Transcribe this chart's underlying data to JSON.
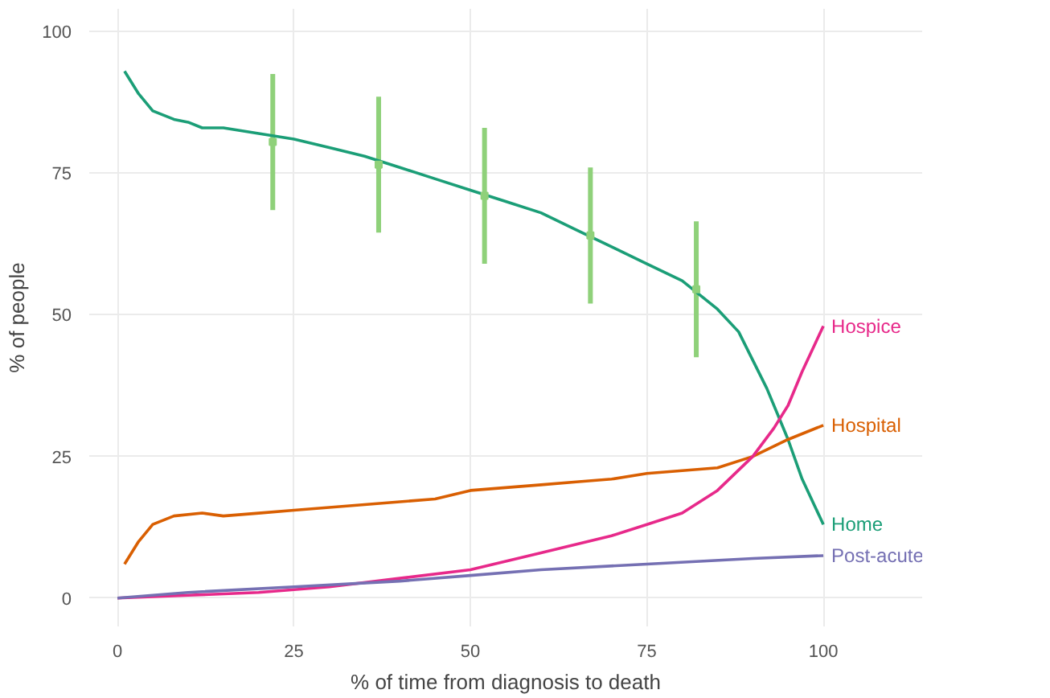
{
  "chart_data": {
    "type": "line",
    "xlabel": "% of time from diagnosis to death",
    "ylabel": "% of people",
    "xlim": [
      -4,
      114
    ],
    "ylim": [
      -5,
      104
    ],
    "xticks": [
      0,
      25,
      50,
      75,
      100
    ],
    "yticks": [
      0,
      25,
      50,
      75,
      100
    ],
    "grid": true,
    "series": [
      {
        "name": "Home",
        "color": "#1b9e77",
        "x": [
          1,
          3,
          5,
          8,
          10,
          12,
          15,
          20,
          25,
          30,
          35,
          40,
          45,
          50,
          55,
          60,
          65,
          70,
          75,
          80,
          85,
          88,
          90,
          92,
          95,
          97,
          100
        ],
        "values": [
          93,
          89,
          86,
          84.5,
          84,
          83,
          83,
          82,
          81,
          79.5,
          78,
          76,
          74,
          72,
          70,
          68,
          65,
          62,
          59,
          56,
          51,
          47,
          42,
          37,
          28,
          21,
          13
        ]
      },
      {
        "name": "Hospital",
        "color": "#d95f02",
        "x": [
          1,
          3,
          5,
          8,
          12,
          15,
          20,
          25,
          30,
          35,
          40,
          45,
          50,
          55,
          60,
          65,
          70,
          75,
          80,
          85,
          90,
          95,
          100
        ],
        "values": [
          6,
          10,
          13,
          14.5,
          15,
          14.5,
          15,
          15.5,
          16,
          16.5,
          17,
          17.5,
          19,
          19.5,
          20,
          20.5,
          21,
          22,
          22.5,
          23,
          25,
          28,
          30.5
        ]
      },
      {
        "name": "Hospice",
        "color": "#e7298a",
        "x": [
          0,
          10,
          20,
          25,
          30,
          40,
          50,
          60,
          70,
          75,
          80,
          85,
          90,
          93,
          95,
          97,
          100
        ],
        "values": [
          0,
          0.5,
          1,
          1.5,
          2,
          3.5,
          5,
          8,
          11,
          13,
          15,
          19,
          25,
          30,
          34,
          40,
          48
        ]
      },
      {
        "name": "Post-acute",
        "color": "#7570b3",
        "x": [
          0,
          10,
          25,
          40,
          50,
          60,
          75,
          90,
          100
        ],
        "values": [
          0,
          1,
          2,
          3,
          4,
          5,
          6,
          7,
          7.5
        ]
      },
      {
        "type": "scatter",
        "marker": "square",
        "color": "#8fd17a",
        "x": [
          22,
          37,
          52,
          67,
          82
        ],
        "values": [
          80.5,
          76.5,
          71,
          64,
          54.5
        ],
        "errors": [
          12,
          12,
          12,
          12,
          12
        ]
      }
    ]
  }
}
